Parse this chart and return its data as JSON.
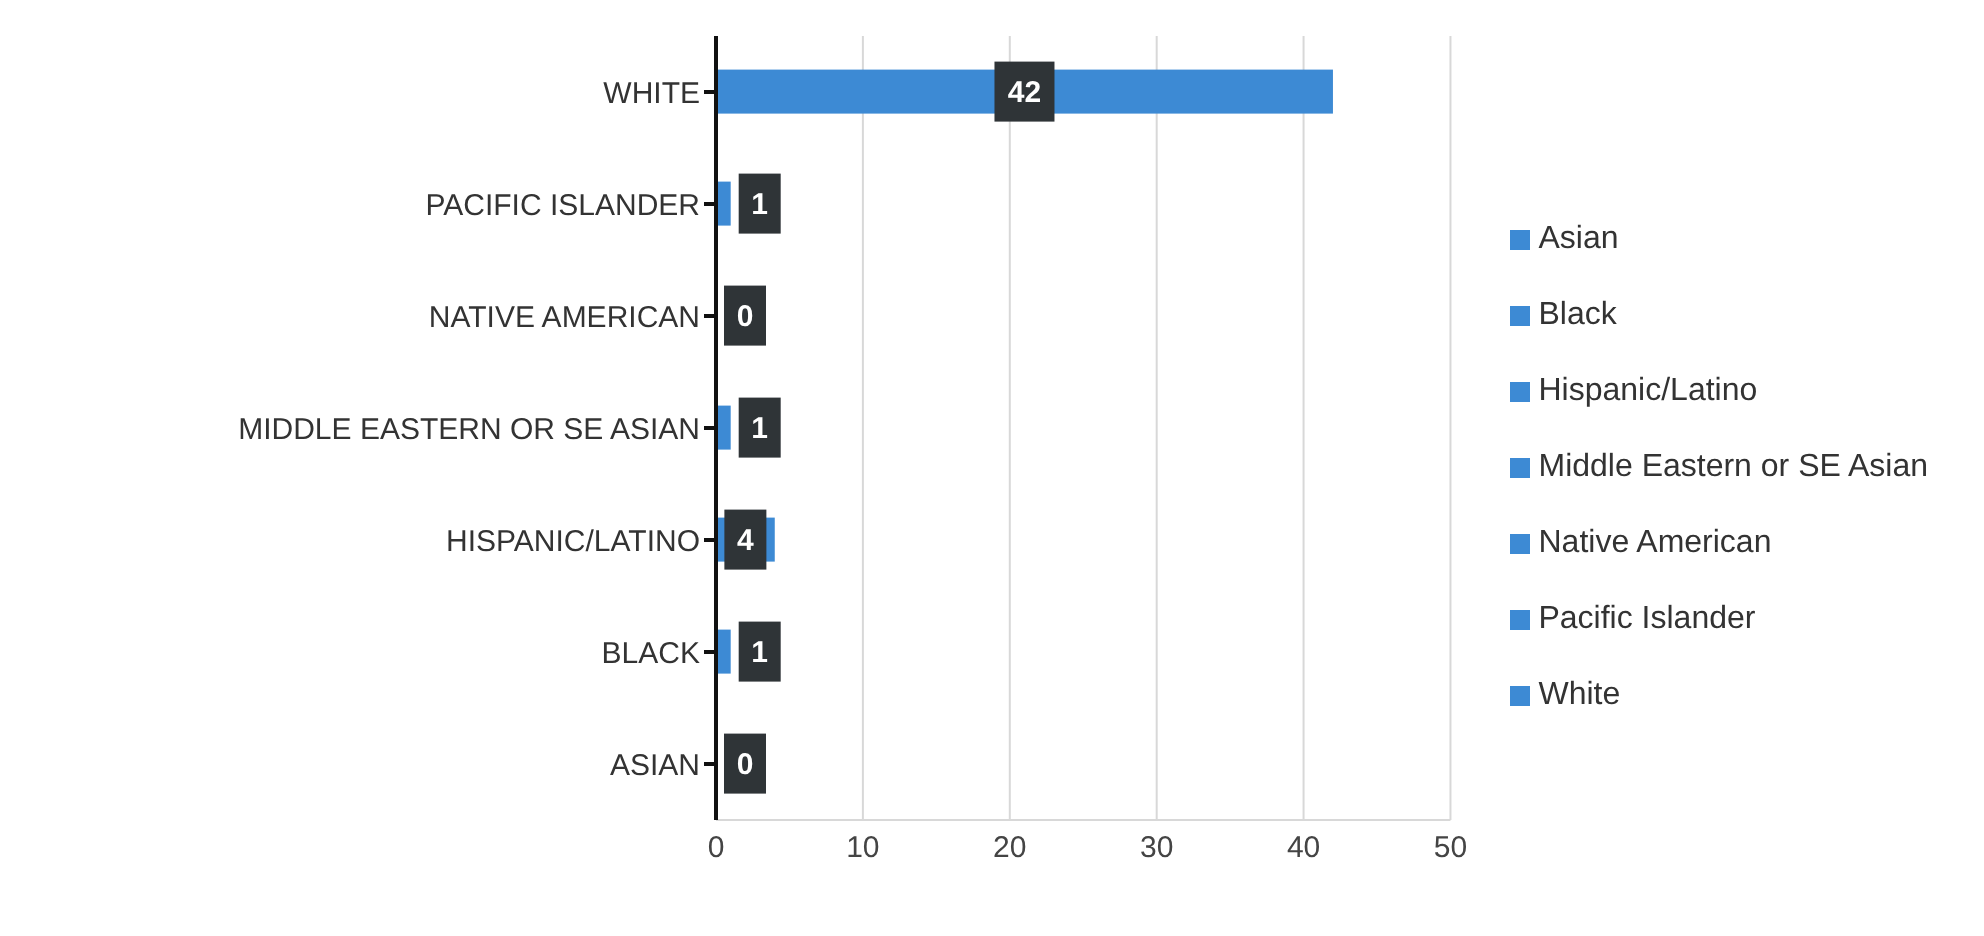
{
  "chart_data": {
    "type": "bar",
    "orientation": "horizontal",
    "stacked": true,
    "categories": [
      "WHITE",
      "PACIFIC ISLANDER",
      "NATIVE AMERICAN",
      "MIDDLE EASTERN OR SE ASIAN",
      "HISPANIC/LATINO",
      "BLACK",
      "ASIAN"
    ],
    "series": [
      {
        "name": "Asian",
        "color": "#3d8ad4",
        "values": [
          null,
          null,
          null,
          null,
          null,
          null,
          0
        ]
      },
      {
        "name": "Black",
        "color": "#3d8ad4",
        "values": [
          null,
          null,
          null,
          null,
          null,
          1,
          null
        ]
      },
      {
        "name": "Hispanic/Latino",
        "color": "#3d8ad4",
        "values": [
          null,
          null,
          null,
          null,
          4,
          null,
          null
        ]
      },
      {
        "name": "Middle Eastern or SE Asian",
        "color": "#3d8ad4",
        "values": [
          null,
          null,
          null,
          1,
          null,
          null,
          null
        ]
      },
      {
        "name": "Native American",
        "color": "#3d8ad4",
        "values": [
          null,
          null,
          0,
          null,
          null,
          null,
          null
        ]
      },
      {
        "name": "Pacific Islander",
        "color": "#3d8ad4",
        "values": [
          null,
          1,
          null,
          null,
          null,
          null,
          null
        ]
      },
      {
        "name": "White",
        "color": "#3d8ad4",
        "values": [
          42,
          null,
          null,
          null,
          null,
          null,
          null
        ]
      }
    ],
    "xlim": [
      0,
      50
    ],
    "xticks": [
      0,
      10,
      20,
      30,
      40,
      50
    ],
    "grid": "x",
    "legend": "right",
    "data_labels": true
  }
}
